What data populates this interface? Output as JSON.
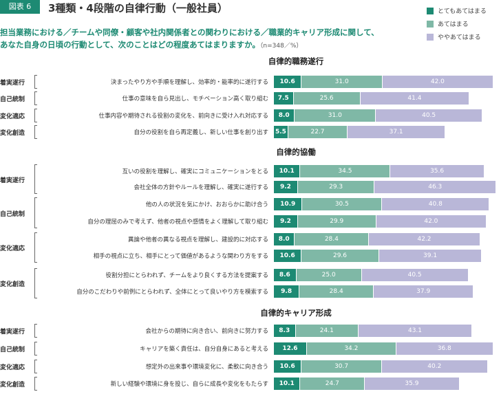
{
  "header": {
    "figure_tag": "図表 6",
    "title": "3種類・4段階の自律行動（一般社員）",
    "subtitle_line1": "担当業務における／チームや同僚・顧客や社内関係者との関わりにおける／職業的キャリア形成に関して、",
    "subtitle_line2": "あなた自身の日頃の行動として、次のことはどの程度あてはまりますか。",
    "note": "（n=348／%）"
  },
  "legend": [
    {
      "label": "とてもあてはまる",
      "color": "#1d8a73"
    },
    {
      "label": "あてはまる",
      "color": "#7fb8a6"
    },
    {
      "label": "ややあてはまる",
      "color": "#b9b7d8"
    }
  ],
  "chart_data": {
    "type": "bar",
    "stacked": true,
    "orientation": "horizontal",
    "series": [
      "とてもあてはまる",
      "あてはまる",
      "ややあてはまる"
    ],
    "sections": [
      {
        "title": "自律的職務遂行",
        "groups": [
          {
            "label": "着実遂行",
            "rows": [
              {
                "label": "決まったやり方や手順を理解し、効率的・能率的に遂行する",
                "values": [
                  10.6,
                  31.0,
                  42.0
                ]
              }
            ]
          },
          {
            "label": "自己統制",
            "rows": [
              {
                "label": "仕事の意味を自ら見出し、モチベーション高く取り組む",
                "values": [
                  7.5,
                  25.6,
                  41.4
                ]
              }
            ]
          },
          {
            "label": "変化適応",
            "rows": [
              {
                "label": "仕事内容や期待される役割の変化を、前向きに受け入れ対応する",
                "values": [
                  8.0,
                  31.0,
                  40.5
                ]
              }
            ]
          },
          {
            "label": "変化創造",
            "rows": [
              {
                "label": "自分の役割を自ら再定義し、新しい仕事を創り出す",
                "values": [
                  5.5,
                  22.7,
                  37.1
                ]
              }
            ]
          }
        ]
      },
      {
        "title": "自律的協働",
        "groups": [
          {
            "label": "着実遂行",
            "rows": [
              {
                "label": "互いの役割を理解し、確実にコミュニケーションをとる",
                "values": [
                  10.1,
                  34.5,
                  35.6
                ]
              },
              {
                "label": "会社全体の方針やルールを理解し、確実に遂行する",
                "values": [
                  9.2,
                  29.3,
                  46.3
                ]
              }
            ]
          },
          {
            "label": "自己統制",
            "rows": [
              {
                "label": "他の人の状況を気にかけ、おおらかに助け合う",
                "values": [
                  10.9,
                  30.5,
                  40.8
                ]
              },
              {
                "label": "自分の理屈のみで考えず、他者の視点や感情をよく理解して取り組む",
                "values": [
                  9.2,
                  29.9,
                  42.0
                ]
              }
            ]
          },
          {
            "label": "変化適応",
            "rows": [
              {
                "label": "異論や他者の異なる視点を理解し、建設的に対応する",
                "values": [
                  8.0,
                  28.4,
                  42.2
                ]
              },
              {
                "label": "相手の視点に立ち、相手にとって価値があるような関わり方をする",
                "values": [
                  10.6,
                  29.6,
                  39.1
                ]
              }
            ]
          },
          {
            "label": "変化創造",
            "rows": [
              {
                "label": "役割分担にとらわれず、チームをより良くする方法を提案する",
                "values": [
                  8.6,
                  25.0,
                  40.5
                ]
              },
              {
                "label": "自分のこだわりや前例にとらわれず、全体にとって良いやり方を模索する",
                "values": [
                  9.8,
                  28.4,
                  37.9
                ]
              }
            ]
          }
        ]
      },
      {
        "title": "自律的キャリア形成",
        "groups": [
          {
            "label": "着実遂行",
            "rows": [
              {
                "label": "会社からの期待に向き合い、前向きに努力する",
                "values": [
                  8.3,
                  24.1,
                  43.1
                ]
              }
            ]
          },
          {
            "label": "自己統制",
            "rows": [
              {
                "label": "キャリアを築く責任は、自分自身にあると考える",
                "values": [
                  12.6,
                  34.2,
                  36.8
                ]
              }
            ]
          },
          {
            "label": "変化適応",
            "rows": [
              {
                "label": "想定外の出来事や環境変化に、柔軟に向き合う",
                "values": [
                  10.6,
                  30.7,
                  40.2
                ]
              }
            ]
          },
          {
            "label": "変化創造",
            "rows": [
              {
                "label": "新しい経験や環境に身を投じ、自らに成長や変化をもたらす",
                "values": [
                  10.1,
                  24.7,
                  35.9
                ]
              }
            ]
          }
        ]
      }
    ]
  }
}
